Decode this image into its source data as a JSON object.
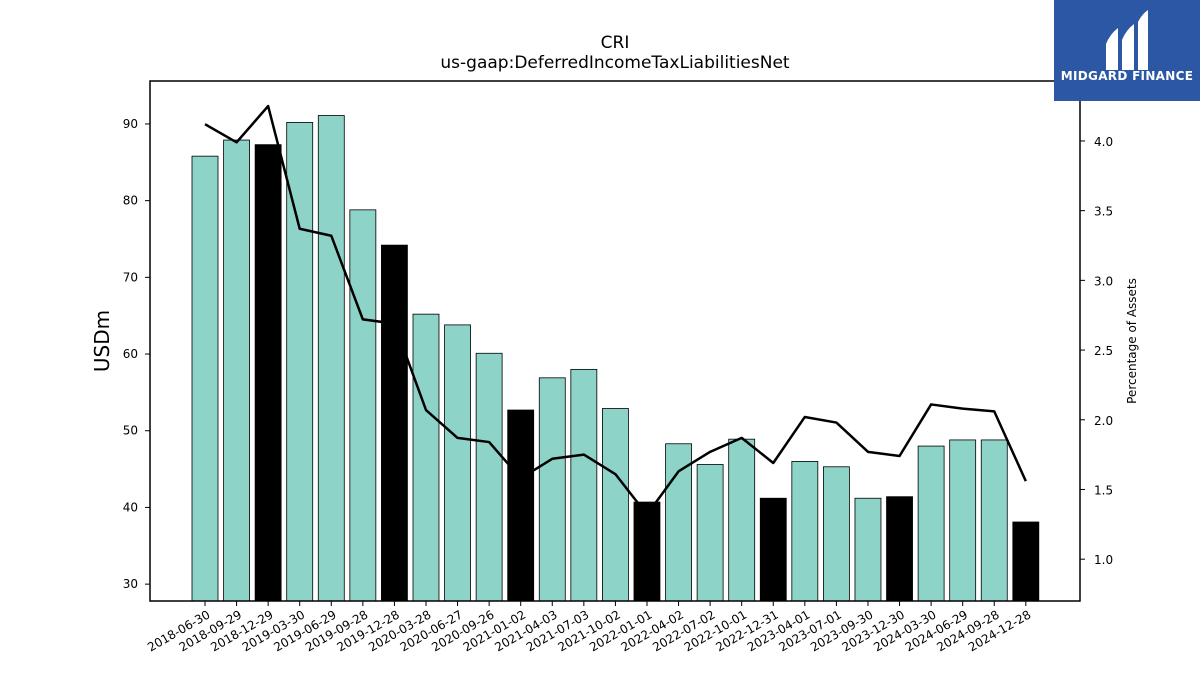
{
  "logo": {
    "text": "MIDGARD FINANCE",
    "bg_color": "#2b57a5"
  },
  "colors": {
    "bar_regular": "#8dd3c7",
    "bar_highlight": "#000000",
    "line": "#000000"
  },
  "chart_data": {
    "type": "bar",
    "title": "CRI",
    "subtitle": "us-gaap:DeferredIncomeTaxLiabilitiesNet",
    "xlabel": "",
    "ylabel": "USDm",
    "y2label": "Percentage of Assets",
    "ylim": [
      27.8,
      95.6
    ],
    "y2lim": [
      0.7,
      4.43
    ],
    "yticks": [
      30,
      40,
      50,
      60,
      70,
      80,
      90
    ],
    "y2ticks": [
      "1.0",
      "1.5",
      "2.0",
      "2.5",
      "3.0",
      "3.5",
      "4.0"
    ],
    "grid": false,
    "categories": [
      "2018-06-30",
      "2018-09-29",
      "2018-12-29",
      "2019-03-30",
      "2019-06-29",
      "2019-09-28",
      "2019-12-28",
      "2020-03-28",
      "2020-06-27",
      "2020-09-26",
      "2021-01-02",
      "2021-04-03",
      "2021-07-03",
      "2021-10-02",
      "2022-01-01",
      "2022-04-02",
      "2022-07-02",
      "2022-10-01",
      "2022-12-31",
      "2023-04-01",
      "2023-07-01",
      "2023-09-30",
      "2023-12-30",
      "2024-03-30",
      "2024-06-29",
      "2024-09-28",
      "2024-12-28"
    ],
    "series": [
      {
        "type": "bar",
        "values": [
          85.8,
          87.9,
          87.3,
          90.2,
          91.1,
          78.8,
          74.2,
          65.2,
          63.8,
          60.1,
          52.7,
          56.9,
          58.0,
          52.9,
          40.7,
          48.3,
          45.6,
          48.9,
          41.2,
          46.0,
          45.3,
          41.2,
          41.4,
          48.0,
          48.8,
          48.8,
          38.1
        ],
        "highlight": [
          false,
          false,
          true,
          false,
          false,
          false,
          true,
          false,
          false,
          false,
          true,
          false,
          false,
          false,
          true,
          false,
          false,
          false,
          true,
          false,
          false,
          false,
          true,
          false,
          false,
          false,
          true
        ]
      },
      {
        "type": "line",
        "axis": "right",
        "values": [
          4.12,
          3.99,
          4.25,
          3.37,
          3.32,
          2.72,
          2.69,
          2.07,
          1.87,
          1.84,
          1.58,
          1.72,
          1.75,
          1.61,
          1.32,
          1.63,
          1.77,
          1.87,
          1.69,
          2.02,
          1.98,
          1.77,
          1.74,
          2.11,
          2.08,
          2.06,
          1.56
        ]
      }
    ]
  }
}
